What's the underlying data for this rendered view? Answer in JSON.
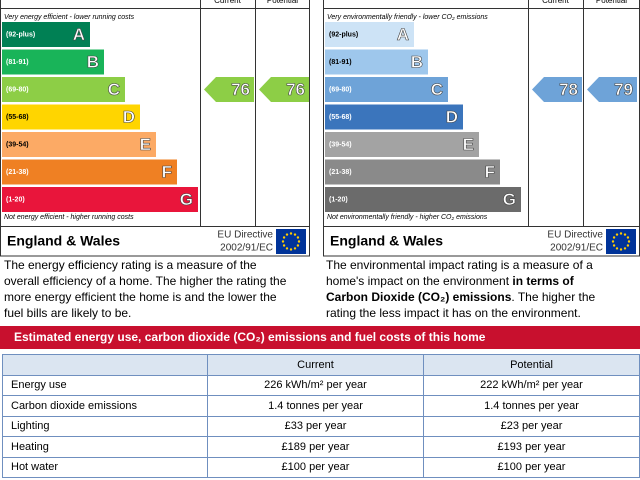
{
  "energy_efficiency": {
    "headers": [
      "Current",
      "Potential"
    ],
    "top_note": "Very energy efficient - lower running costs",
    "bottom_note": "Not energy efficient - higher running costs",
    "bands": [
      {
        "range": "(92-plus)",
        "letter": "A",
        "color": "#008054"
      },
      {
        "range": "(81-91)",
        "letter": "B",
        "color": "#19b459"
      },
      {
        "range": "(69-80)",
        "letter": "C",
        "color": "#8dce46"
      },
      {
        "range": "(55-68)",
        "letter": "D",
        "color": "#ffd500"
      },
      {
        "range": "(39-54)",
        "letter": "E",
        "color": "#fcaa65"
      },
      {
        "range": "(21-38)",
        "letter": "F",
        "color": "#ef8023"
      },
      {
        "range": "(1-20)",
        "letter": "G",
        "color": "#e9153b"
      }
    ],
    "current": 76,
    "potential": 76,
    "region": "England & Wales",
    "directive": [
      "EU Directive",
      "2002/91/EC"
    ],
    "description": {
      "before": "The energy efficiency rating is a measure of the overall efficiency of a home. The higher the rating the more energy efficient the home is and the lower the fuel bills are likely to be."
    }
  },
  "environmental_impact": {
    "headers": [
      "Current",
      "Potential"
    ],
    "top_note": "Very environmentally friendly - lower CO₂ emissions",
    "bottom_note": "Not environmentally friendly - higher CO₂ emissions",
    "bands": [
      {
        "range": "(92-plus)",
        "letter": "A",
        "color": "#cde3f6"
      },
      {
        "range": "(81-91)",
        "letter": "B",
        "color": "#9ec7ec"
      },
      {
        "range": "(69-80)",
        "letter": "C",
        "color": "#6ea3d8"
      },
      {
        "range": "(55-68)",
        "letter": "D",
        "color": "#3b75bc"
      },
      {
        "range": "(39-54)",
        "letter": "E",
        "color": "#a3a3a3"
      },
      {
        "range": "(21-38)",
        "letter": "F",
        "color": "#8a8a8a"
      },
      {
        "range": "(1-20)",
        "letter": "G",
        "color": "#6b6b6b"
      }
    ],
    "current": 78,
    "potential": 79,
    "region": "England & Wales",
    "directive": [
      "EU Directive",
      "2002/91/EC"
    ],
    "description": {
      "before": "The environmental impact rating is a measure of a home's impact on the environment ",
      "emphasis": "in terms of Carbon Dioxide (CO₂) emissions",
      "after": ". The higher the rating the less impact it has on the environment."
    }
  },
  "table": {
    "title": "Estimated energy use, carbon dioxide (CO₂) emissions and fuel costs of this home",
    "columns": [
      "Current",
      "Potential"
    ],
    "rows": [
      [
        "Energy use",
        "226 kWh/m² per year",
        "222 kWh/m² per year"
      ],
      [
        "Carbon dioxide emissions",
        "1.4 tonnes per year",
        "1.4 tonnes per year"
      ],
      [
        "Lighting",
        "£33 per year",
        "£23 per year"
      ],
      [
        "Heating",
        "£189 per year",
        "£193 per year"
      ],
      [
        "Hot water",
        "£100 per year",
        "£100 per year"
      ]
    ]
  }
}
